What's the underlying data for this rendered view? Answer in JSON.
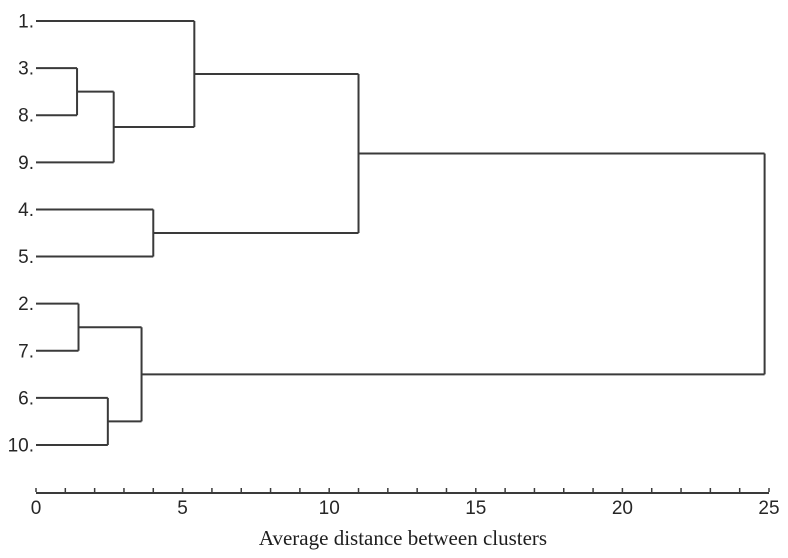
{
  "figure": {
    "background": "#ffffff",
    "line_color": "#3a3a3a",
    "text_color": "#262626"
  },
  "chart_data": {
    "type": "dendrogram",
    "orientation": "horizontal",
    "title": "",
    "xlabel": "Average distance between clusters",
    "ylabel": "",
    "xlim": [
      0,
      25
    ],
    "x_ticks": [
      0,
      5,
      10,
      15,
      20,
      25
    ],
    "x_minor_tick_step": 1,
    "grid": false,
    "leaves_top_to_bottom": [
      "1.",
      "3.",
      "8.",
      "9.",
      "4.",
      "5.",
      "2.",
      "7.",
      "6.",
      "10."
    ],
    "merges": [
      {
        "members": [
          "3",
          "8"
        ],
        "distance": 1.4
      },
      {
        "members": [
          "3,8",
          "9"
        ],
        "distance": 2.65
      },
      {
        "members": [
          "1",
          "3,8,9"
        ],
        "distance": 5.4
      },
      {
        "members": [
          "4",
          "5"
        ],
        "distance": 4.0
      },
      {
        "members": [
          "1,3,8,9",
          "4,5"
        ],
        "distance": 11.0
      },
      {
        "members": [
          "2",
          "7"
        ],
        "distance": 1.45
      },
      {
        "members": [
          "6",
          "10"
        ],
        "distance": 2.45
      },
      {
        "members": [
          "2,7",
          "6,10"
        ],
        "distance": 3.6
      },
      {
        "members": [
          "1,3,8,9,4,5",
          "2,7,6,10"
        ],
        "distance": 24.85
      }
    ],
    "tree": {
      "d": 24.85,
      "children": [
        {
          "d": 11.0,
          "children": [
            {
              "d": 5.4,
              "children": [
                {
                  "leaf": "1."
                },
                {
                  "d": 2.65,
                  "children": [
                    {
                      "d": 1.4,
                      "children": [
                        {
                          "leaf": "3."
                        },
                        {
                          "leaf": "8."
                        }
                      ]
                    },
                    {
                      "leaf": "9."
                    }
                  ]
                }
              ]
            },
            {
              "d": 4.0,
              "children": [
                {
                  "leaf": "4."
                },
                {
                  "leaf": "5."
                }
              ]
            }
          ]
        },
        {
          "d": 3.6,
          "children": [
            {
              "d": 1.45,
              "children": [
                {
                  "leaf": "2."
                },
                {
                  "leaf": "7."
                }
              ]
            },
            {
              "d": 2.45,
              "children": [
                {
                  "leaf": "6."
                },
                {
                  "leaf": "10."
                }
              ]
            }
          ]
        }
      ]
    }
  }
}
